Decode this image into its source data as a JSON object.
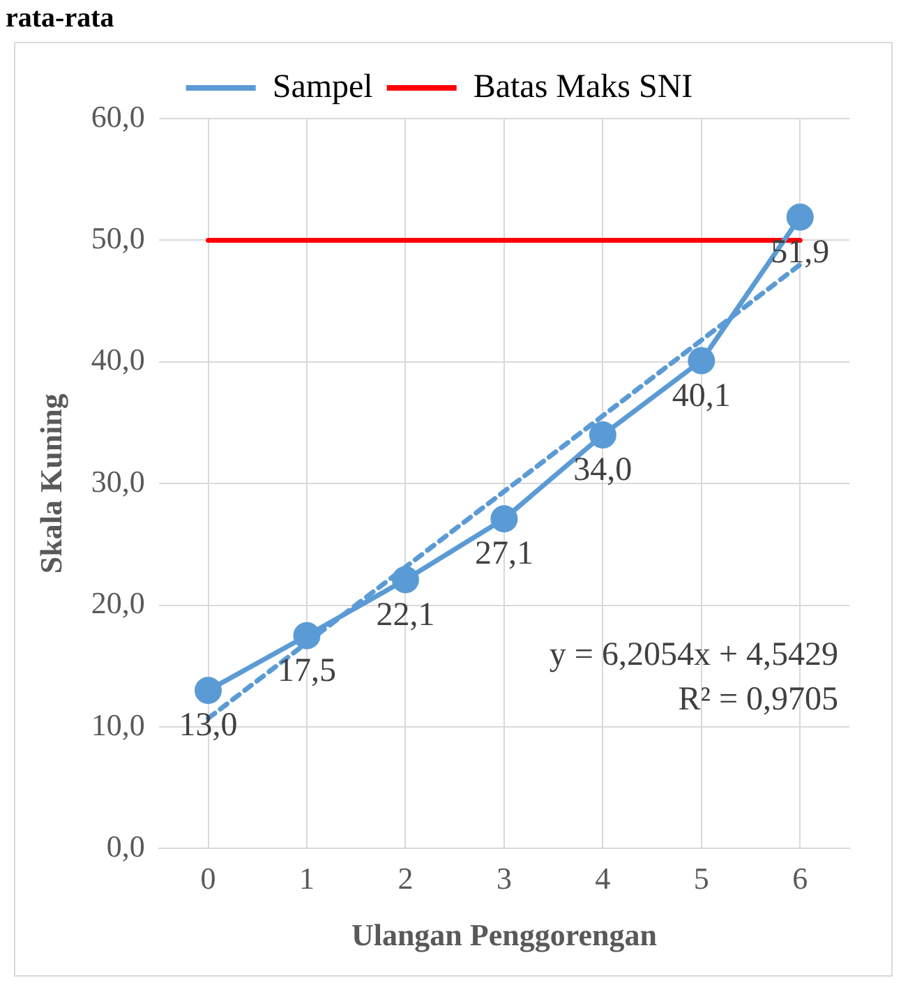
{
  "chart_data": {
    "type": "line",
    "title": "rata-rata",
    "xlabel": "Ulangan Penggorengan",
    "ylabel": "Skala Kuning",
    "categories": [
      "0",
      "1",
      "2",
      "3",
      "4",
      "5",
      "6"
    ],
    "series": [
      {
        "name": "Sampel",
        "color": "#5b9bd5",
        "values": [
          13.0,
          17.5,
          22.1,
          27.1,
          34.0,
          40.1,
          51.9
        ],
        "value_labels": [
          "13,0",
          "17,5",
          "22,1",
          "27,1",
          "34,0",
          "40,1",
          "51,9"
        ],
        "marker": "circle"
      },
      {
        "name": "Batas Maks SNI",
        "color": "#ff0000",
        "values": [
          50,
          50,
          50,
          50,
          50,
          50,
          50
        ],
        "marker": "none"
      },
      {
        "color": "#5b9bd5",
        "values": [
          10.7,
          null,
          null,
          null,
          null,
          null,
          48.0
        ],
        "marker": "none",
        "line_style": "dashed"
      }
    ],
    "ylim": [
      0,
      60
    ],
    "yticks": [
      {
        "value": 0,
        "label": "0,0"
      },
      {
        "value": 10,
        "label": "10,0"
      },
      {
        "value": 20,
        "label": "20,0"
      },
      {
        "value": 30,
        "label": "30,0"
      },
      {
        "value": 40,
        "label": "40,0"
      },
      {
        "value": 50,
        "label": "50,0"
      },
      {
        "value": 60,
        "label": "60,0"
      }
    ],
    "annotations": [
      "y = 6,2054x + 4,5429",
      "R² = 0,9705"
    ],
    "grid": true,
    "legend": "top"
  }
}
